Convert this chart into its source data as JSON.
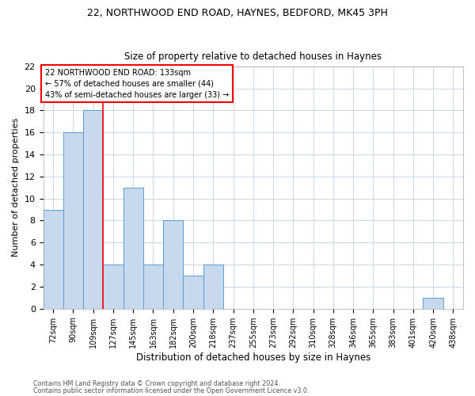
{
  "title1": "22, NORTHWOOD END ROAD, HAYNES, BEDFORD, MK45 3PH",
  "title2": "Size of property relative to detached houses in Haynes",
  "xlabel": "Distribution of detached houses by size in Haynes",
  "ylabel": "Number of detached properties",
  "bar_labels": [
    "72sqm",
    "90sqm",
    "109sqm",
    "127sqm",
    "145sqm",
    "163sqm",
    "182sqm",
    "200sqm",
    "218sqm",
    "237sqm",
    "255sqm",
    "273sqm",
    "292sqm",
    "310sqm",
    "328sqm",
    "346sqm",
    "365sqm",
    "383sqm",
    "401sqm",
    "420sqm",
    "438sqm"
  ],
  "bar_values": [
    9,
    16,
    18,
    4,
    11,
    4,
    8,
    3,
    4,
    0,
    0,
    0,
    0,
    0,
    0,
    0,
    0,
    0,
    0,
    1,
    0
  ],
  "bar_color": "#c9d9ed",
  "bar_edgecolor": "#5b9bd5",
  "annotation_text": "22 NORTHWOOD END ROAD: 133sqm\n← 57% of detached houses are smaller (44)\n43% of semi-detached houses are larger (33) →",
  "vline_x": 2.5,
  "ylim": [
    0,
    22
  ],
  "yticks": [
    0,
    2,
    4,
    6,
    8,
    10,
    12,
    14,
    16,
    18,
    20,
    22
  ],
  "footer1": "Contains HM Land Registry data © Crown copyright and database right 2024.",
  "footer2": "Contains public sector information licensed under the Open Government Licence v3.0.",
  "bg_color": "#ffffff",
  "grid_color": "#c8d8e8"
}
